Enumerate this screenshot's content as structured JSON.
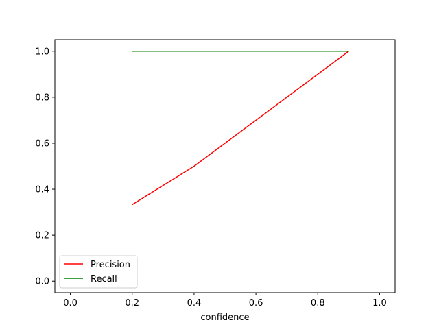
{
  "chart_data": {
    "type": "line",
    "title": "",
    "xlabel": "confidence",
    "ylabel": "",
    "xlim": [
      -0.05,
      1.05
    ],
    "ylim": [
      -0.05,
      1.05
    ],
    "x_ticks": [
      0.0,
      0.2,
      0.4,
      0.6,
      0.8,
      1.0
    ],
    "y_ticks": [
      0.0,
      0.2,
      0.4,
      0.6,
      0.8,
      1.0
    ],
    "x_tick_labels": [
      "0.0",
      "0.2",
      "0.4",
      "0.6",
      "0.8",
      "1.0"
    ],
    "y_tick_labels": [
      "0.0",
      "0.2",
      "0.4",
      "0.6",
      "0.8",
      "1.0"
    ],
    "grid": false,
    "legend_position": "lower-left",
    "series": [
      {
        "name": "Precision",
        "color": "#ff0000",
        "x": [
          0.2,
          0.4,
          0.9
        ],
        "y": [
          0.333,
          0.5,
          1.0
        ]
      },
      {
        "name": "Recall",
        "color": "#008000",
        "x": [
          0.2,
          0.4,
          0.9
        ],
        "y": [
          1.0,
          1.0,
          1.0
        ]
      }
    ]
  }
}
